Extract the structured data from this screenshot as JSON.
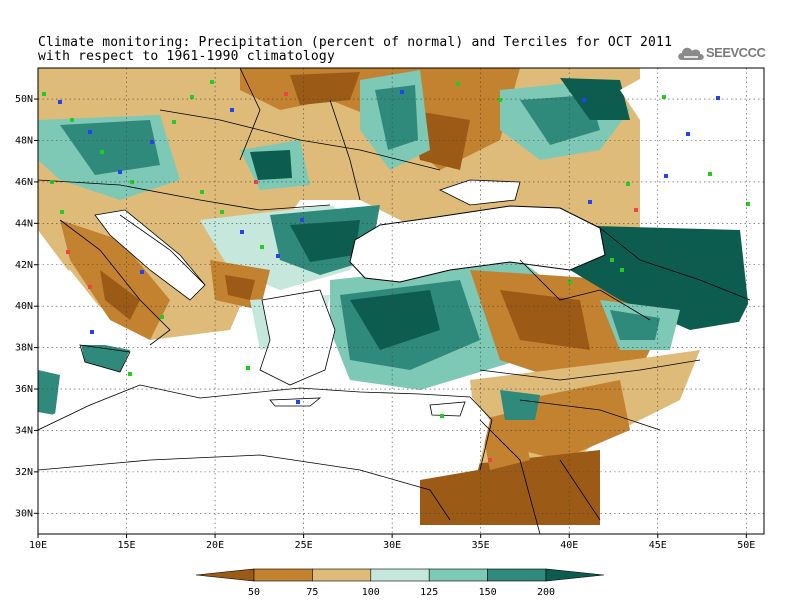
{
  "header": {
    "title_line1": "Climate monitoring: Precipitation (percent of normal) and Terciles for OCT 2011",
    "title_line2": "with respect to 1961-1990 climatology"
  },
  "logo": {
    "text": "SEEVCCC",
    "icon": "cloud-icon"
  },
  "map": {
    "lon_range": [
      10,
      51
    ],
    "lat_range": [
      29,
      51.5
    ],
    "x_ticks": [
      "10E",
      "15E",
      "20E",
      "25E",
      "30E",
      "35E",
      "40E",
      "45E",
      "50E"
    ],
    "y_ticks": [
      "30N",
      "32N",
      "34N",
      "36N",
      "38N",
      "40N",
      "42N",
      "44N",
      "46N",
      "48N",
      "50N"
    ],
    "grid": true
  },
  "colorbar": {
    "labels": [
      "50",
      "75",
      "100",
      "125",
      "150",
      "200"
    ],
    "colors": [
      "#9c5a17",
      "#c3822f",
      "#dfbb7a",
      "#c6e8dc",
      "#7ec8b6",
      "#2f8a7c",
      "#0d5c50"
    ]
  }
}
